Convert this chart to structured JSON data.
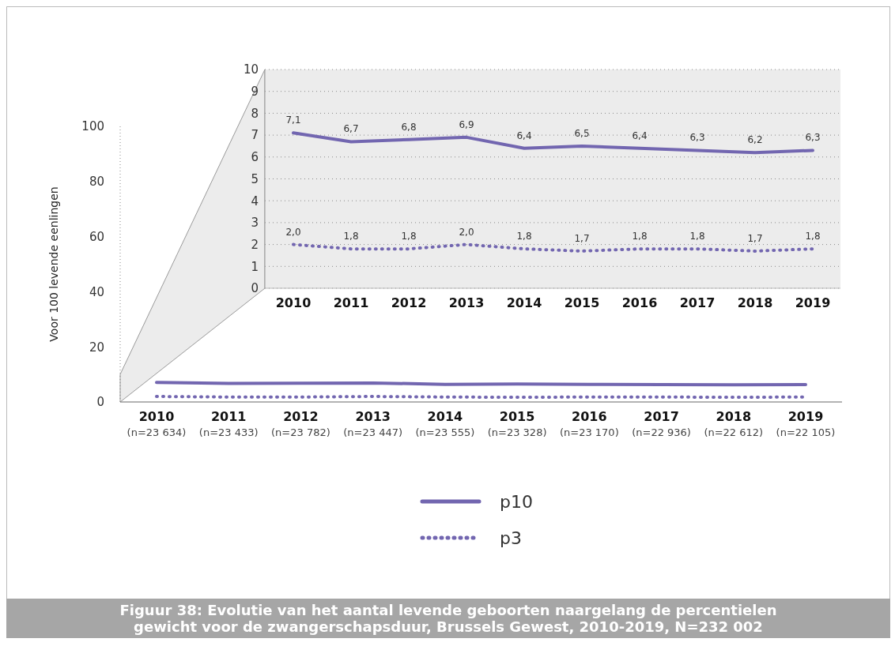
{
  "chart_data": [
    {
      "type": "line",
      "title": "Figuur 38: Evolutie van het aantal levende geboorten naargelang de percentielen gewicht voor de zwangerschapsduur, Brussels Gewest, 2010-2019, N=232 002",
      "ylabel": "Voor 100 levende eenlingen",
      "categories": [
        "2010\n(n=23 634)",
        "2011\n(n=23 433)",
        "2012\n(n=23 782)",
        "2013\n(n=23 447)",
        "2014\n(n=23 555)",
        "2015\n(n=23 328)",
        "2016\n(n=23 170)",
        "2017\n(n=22 936)",
        "2018\n(n=22 612)",
        "2019\n(n=22 105)"
      ],
      "series": [
        {
          "name": "p10",
          "color": "#7266b0",
          "line_style": "solid",
          "values": [
            7.1,
            6.7,
            6.8,
            6.9,
            6.4,
            6.5,
            6.4,
            6.3,
            6.2,
            6.3
          ]
        },
        {
          "name": "p3",
          "color": "#7266b0",
          "line_style": "dotted",
          "values": [
            2.0,
            1.8,
            1.8,
            2.0,
            1.8,
            1.7,
            1.8,
            1.8,
            1.7,
            1.8
          ]
        }
      ],
      "ylim": [
        0,
        100
      ],
      "yticks": [
        0,
        20,
        40,
        60,
        80,
        100
      ],
      "grid": false,
      "legend": "bottom"
    },
    {
      "type": "line",
      "categories": [
        "2010",
        "2011",
        "2012",
        "2013",
        "2014",
        "2015",
        "2016",
        "2017",
        "2018",
        "2019"
      ],
      "series": [
        {
          "color": "#7266b0",
          "line_style": "solid",
          "values": [
            7.1,
            6.7,
            6.8,
            6.9,
            6.4,
            6.5,
            6.4,
            6.3,
            6.2,
            6.3
          ],
          "value_labels": [
            "7,1",
            "6,7",
            "6,8",
            "6,9",
            "6,4",
            "6,5",
            "6,4",
            "6,3",
            "6,2",
            "6,3"
          ]
        },
        {
          "color": "#7266b0",
          "line_style": "dotted",
          "values": [
            2.0,
            1.8,
            1.8,
            2.0,
            1.8,
            1.7,
            1.8,
            1.8,
            1.7,
            1.8
          ],
          "value_labels": [
            "2,0",
            "1,8",
            "1,8",
            "2,0",
            "1,8",
            "1,7",
            "1,8",
            "1,8",
            "1,7",
            "1,8"
          ]
        }
      ],
      "ylim": [
        0,
        10
      ],
      "yticks": [
        0,
        1,
        2,
        3,
        4,
        5,
        6,
        7,
        8,
        9,
        10
      ],
      "grid": "y"
    }
  ]
}
